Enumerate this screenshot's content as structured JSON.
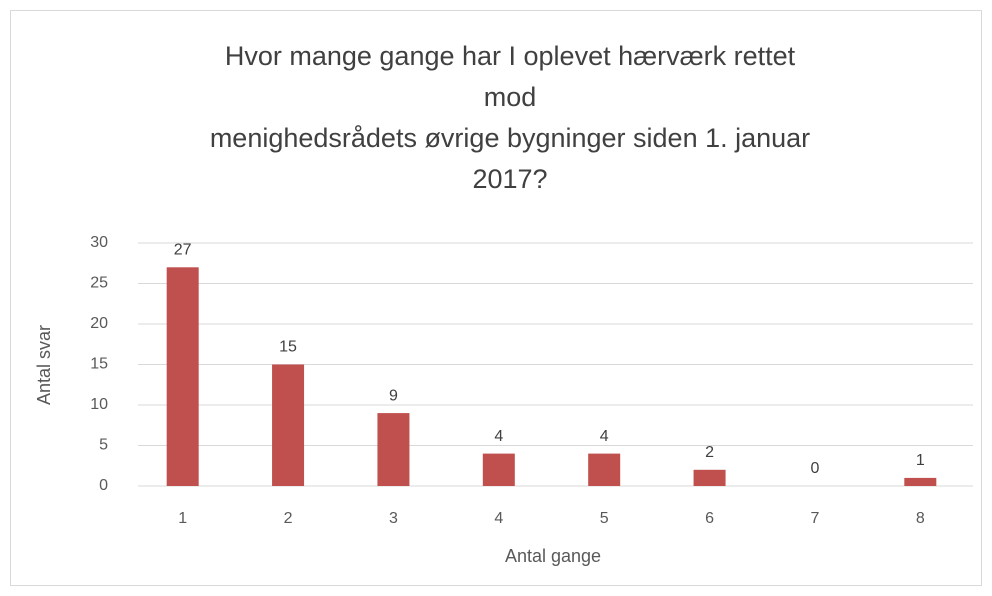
{
  "chart_data": {
    "type": "bar",
    "title": [
      "Hvor mange gange har I oplevet hærværk rettet",
      "mod",
      "menighedsrådets øvrige bygninger siden 1. januar",
      "2017?"
    ],
    "x_label": "Antal gange",
    "y_label": "Antal svar",
    "categories": [
      "1",
      "2",
      "3",
      "4",
      "5",
      "6",
      "7",
      "8"
    ],
    "values": [
      27,
      15,
      9,
      4,
      4,
      2,
      0,
      1
    ],
    "color": "#c0504d",
    "ylim": [
      0,
      30
    ],
    "yticks": [
      0,
      5,
      10,
      15,
      20,
      25,
      30
    ],
    "grid": true
  }
}
